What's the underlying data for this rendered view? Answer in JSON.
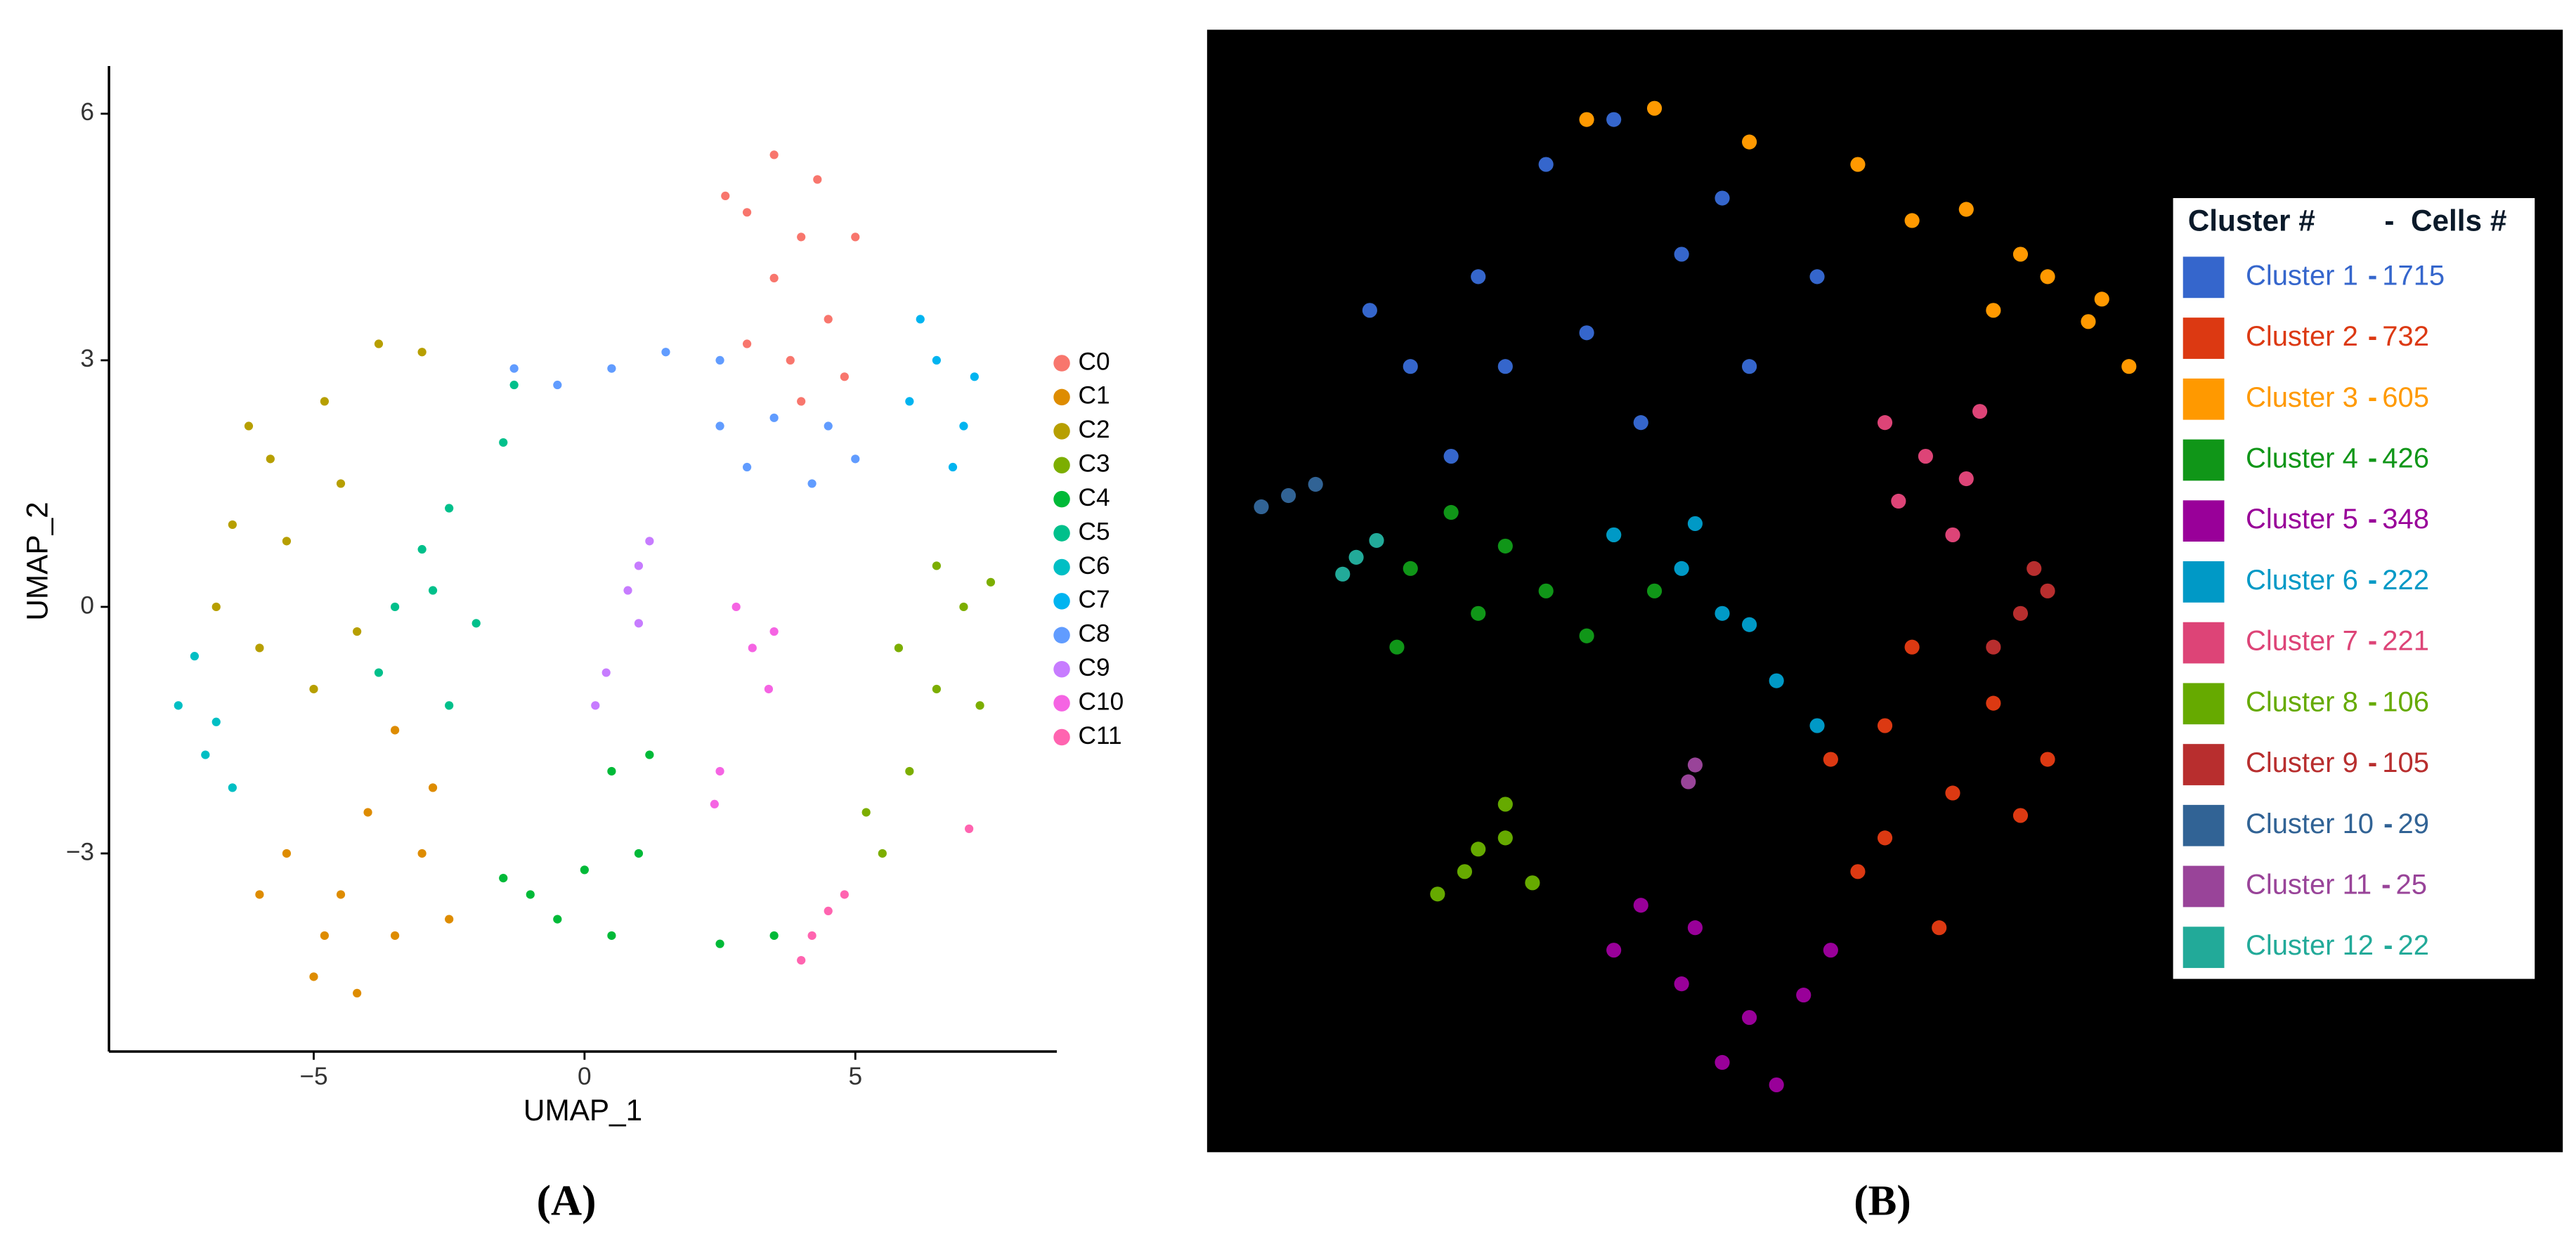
{
  "chart_data": [
    {
      "type": "scatter",
      "panel_label": "(A)",
      "xlabel": "UMAP_1",
      "ylabel": "UMAP_2",
      "xlim": [
        -8.78,
        8.72
      ],
      "ylim": [
        -5.41,
        6.58
      ],
      "xticks": [
        {
          "value": -5,
          "label": "−5"
        },
        0,
        5
      ],
      "yticks": [
        {
          "value": -3,
          "label": "−3"
        },
        0,
        3,
        6
      ],
      "grid": false,
      "legend": "right",
      "background": "#ffffff",
      "series": [
        {
          "name": "C0",
          "color": "#F8766D",
          "x": [
            3.5,
            3,
            4,
            3.5,
            4.5,
            3,
            5,
            4,
            2.6,
            4.8,
            3.8,
            4.3
          ],
          "y": [
            5.5,
            4.8,
            4.5,
            4,
            3.5,
            3.2,
            4.5,
            2.5,
            5,
            2.8,
            3,
            5.2
          ]
        },
        {
          "name": "C1",
          "color": "#DE8C00",
          "x": [
            -5,
            -4.5,
            -3.5,
            -3,
            -5.5,
            -4,
            -2.5,
            -3.5,
            -6,
            -4.8,
            -2.8,
            -4.2
          ],
          "y": [
            -4.5,
            -3.5,
            -4,
            -3,
            -3,
            -2.5,
            -3.8,
            -1.5,
            -3.5,
            -4,
            -2.2,
            -4.7
          ]
        },
        {
          "name": "C2",
          "color": "#B79F00",
          "x": [
            -3.8,
            -4.8,
            -5.8,
            -6.5,
            -6.8,
            -6,
            -5.5,
            -5,
            -4.5,
            -3,
            -6.2,
            -4.2
          ],
          "y": [
            3.2,
            2.5,
            1.8,
            1,
            0,
            -0.5,
            0.8,
            -1,
            1.5,
            3.1,
            2.2,
            -0.3
          ]
        },
        {
          "name": "C3",
          "color": "#7CAE00",
          "x": [
            6.5,
            7,
            5.8,
            6.5,
            6,
            5.5,
            7.3,
            7.5,
            5.2
          ],
          "y": [
            0.5,
            0,
            -0.5,
            -1,
            -2,
            -3,
            -1.2,
            0.3,
            -2.5
          ]
        },
        {
          "name": "C4",
          "color": "#00BA38",
          "x": [
            -1.5,
            -0.5,
            0.5,
            1,
            0.5,
            1.2,
            2.5,
            3.5,
            0,
            -1
          ],
          "y": [
            -3.3,
            -3.8,
            -4,
            -3,
            -2,
            -1.8,
            -4.1,
            -4,
            -3.2,
            -3.5
          ]
        },
        {
          "name": "C5",
          "color": "#00C08B",
          "x": [
            -3,
            -2.5,
            -3.5,
            -2,
            -1.5,
            -3.8,
            -2.5,
            -1.3,
            -2.8
          ],
          "y": [
            0.7,
            1.2,
            0,
            -0.2,
            2,
            -0.8,
            -1.2,
            2.7,
            0.2
          ]
        },
        {
          "name": "C6",
          "color": "#00BFC4",
          "x": [
            -7.5,
            -7,
            -6.5,
            -7.2,
            -6.8
          ],
          "y": [
            -1.2,
            -1.8,
            -2.2,
            -0.6,
            -1.4
          ]
        },
        {
          "name": "C7",
          "color": "#00B4F0",
          "x": [
            6.5,
            6,
            7,
            6.8,
            6.2,
            7.2
          ],
          "y": [
            3,
            2.5,
            2.2,
            1.7,
            3.5,
            2.8
          ]
        },
        {
          "name": "C8",
          "color": "#619CFF",
          "x": [
            -1.3,
            -0.5,
            0.5,
            1.5,
            2.5,
            3,
            3.5,
            4.2,
            5,
            2.5,
            4.5
          ],
          "y": [
            2.9,
            2.7,
            2.9,
            3.1,
            2.2,
            1.7,
            2.3,
            1.5,
            1.8,
            3,
            2.2
          ]
        },
        {
          "name": "C9",
          "color": "#C77CFF",
          "x": [
            1,
            1.2,
            0.8,
            1,
            0.2,
            0.4
          ],
          "y": [
            0.5,
            0.8,
            0.2,
            -0.2,
            -1.2,
            -0.8
          ]
        },
        {
          "name": "C10",
          "color": "#F564E3",
          "x": [
            2.8,
            3.1,
            3.5,
            3.4,
            2.5,
            2.4
          ],
          "y": [
            0,
            -0.5,
            -0.3,
            -1,
            -2,
            -2.4
          ]
        },
        {
          "name": "C11",
          "color": "#FF64B0",
          "x": [
            4.2,
            4.5,
            4,
            4.8,
            7.1
          ],
          "y": [
            -4,
            -3.7,
            -4.3,
            -3.5,
            -2.7
          ]
        }
      ]
    },
    {
      "type": "scatter",
      "panel_label": "(B)",
      "xlim": [
        0,
        100
      ],
      "ylim": [
        0,
        100
      ],
      "grid": false,
      "legend": "right",
      "background": "#000000",
      "legend_title": "Cluster #",
      "legend_separator": "-",
      "legend_count_title": "Cells #",
      "series": [
        {
          "name": "Cluster 1",
          "cells": 1715,
          "color": "#3566cc",
          "x": [
            28,
            20,
            35,
            15,
            40,
            25,
            32,
            18,
            45,
            30,
            38,
            22,
            12
          ],
          "y": [
            73,
            78,
            80,
            70,
            70,
            88,
            65,
            62,
            78,
            92,
            85,
            70,
            75
          ]
        },
        {
          "name": "Cluster 2",
          "cells": 732,
          "color": "#dc3912",
          "x": [
            50,
            55,
            48,
            58,
            52,
            60,
            46,
            54,
            62,
            50
          ],
          "y": [
            38,
            32,
            25,
            40,
            45,
            30,
            35,
            20,
            35,
            28
          ]
        },
        {
          "name": "Cluster 3",
          "cells": 605,
          "color": "#ff9900",
          "x": [
            56,
            60,
            65,
            68,
            62,
            58,
            66,
            28,
            33,
            40,
            48,
            52
          ],
          "y": [
            84,
            80,
            74,
            70,
            78,
            75,
            76,
            92,
            93,
            90,
            88,
            83
          ]
        },
        {
          "name": "Cluster 4",
          "cells": 426,
          "color": "#109618",
          "x": [
            15,
            20,
            25,
            30,
            18,
            14,
            28,
            22,
            33
          ],
          "y": [
            52,
            48,
            50,
            55,
            57,
            45,
            46,
            54,
            50
          ]
        },
        {
          "name": "Cluster 5",
          "cells": 348,
          "color": "#990099",
          "x": [
            30,
            35,
            40,
            38,
            44,
            32,
            42,
            46,
            36
          ],
          "y": [
            18,
            15,
            12,
            8,
            14,
            22,
            6,
            18,
            20
          ]
        },
        {
          "name": "Cluster 6",
          "cells": 222,
          "color": "#0099c6",
          "x": [
            30,
            35,
            38,
            40,
            42,
            36,
            45
          ],
          "y": [
            55,
            52,
            48,
            47,
            42,
            56,
            38
          ]
        },
        {
          "name": "Cluster 7",
          "cells": 221,
          "color": "#dd4477",
          "x": [
            50,
            53,
            56,
            51,
            57,
            55
          ],
          "y": [
            65,
            62,
            60,
            58,
            66,
            55
          ]
        },
        {
          "name": "Cluster 8",
          "cells": 106,
          "color": "#66aa00",
          "x": [
            20,
            19,
            22,
            17,
            24,
            22
          ],
          "y": [
            27,
            25,
            28,
            23,
            24,
            31
          ]
        },
        {
          "name": "Cluster 9",
          "cells": 105,
          "color": "#b82e2e",
          "x": [
            60,
            62,
            58,
            61
          ],
          "y": [
            48,
            50,
            45,
            52
          ]
        },
        {
          "name": "Cluster 10",
          "cells": 29,
          "color": "#316395",
          "x": [
            4,
            6,
            8
          ],
          "y": [
            57.5,
            58.5,
            59.5
          ]
        },
        {
          "name": "Cluster 11",
          "cells": 25,
          "color": "#994499",
          "x": [
            35.5,
            36
          ],
          "y": [
            33,
            34.5
          ]
        },
        {
          "name": "Cluster 12",
          "cells": 22,
          "color": "#22aa99",
          "x": [
            10,
            11,
            12.5
          ],
          "y": [
            51.5,
            53,
            54.5
          ]
        }
      ]
    }
  ]
}
